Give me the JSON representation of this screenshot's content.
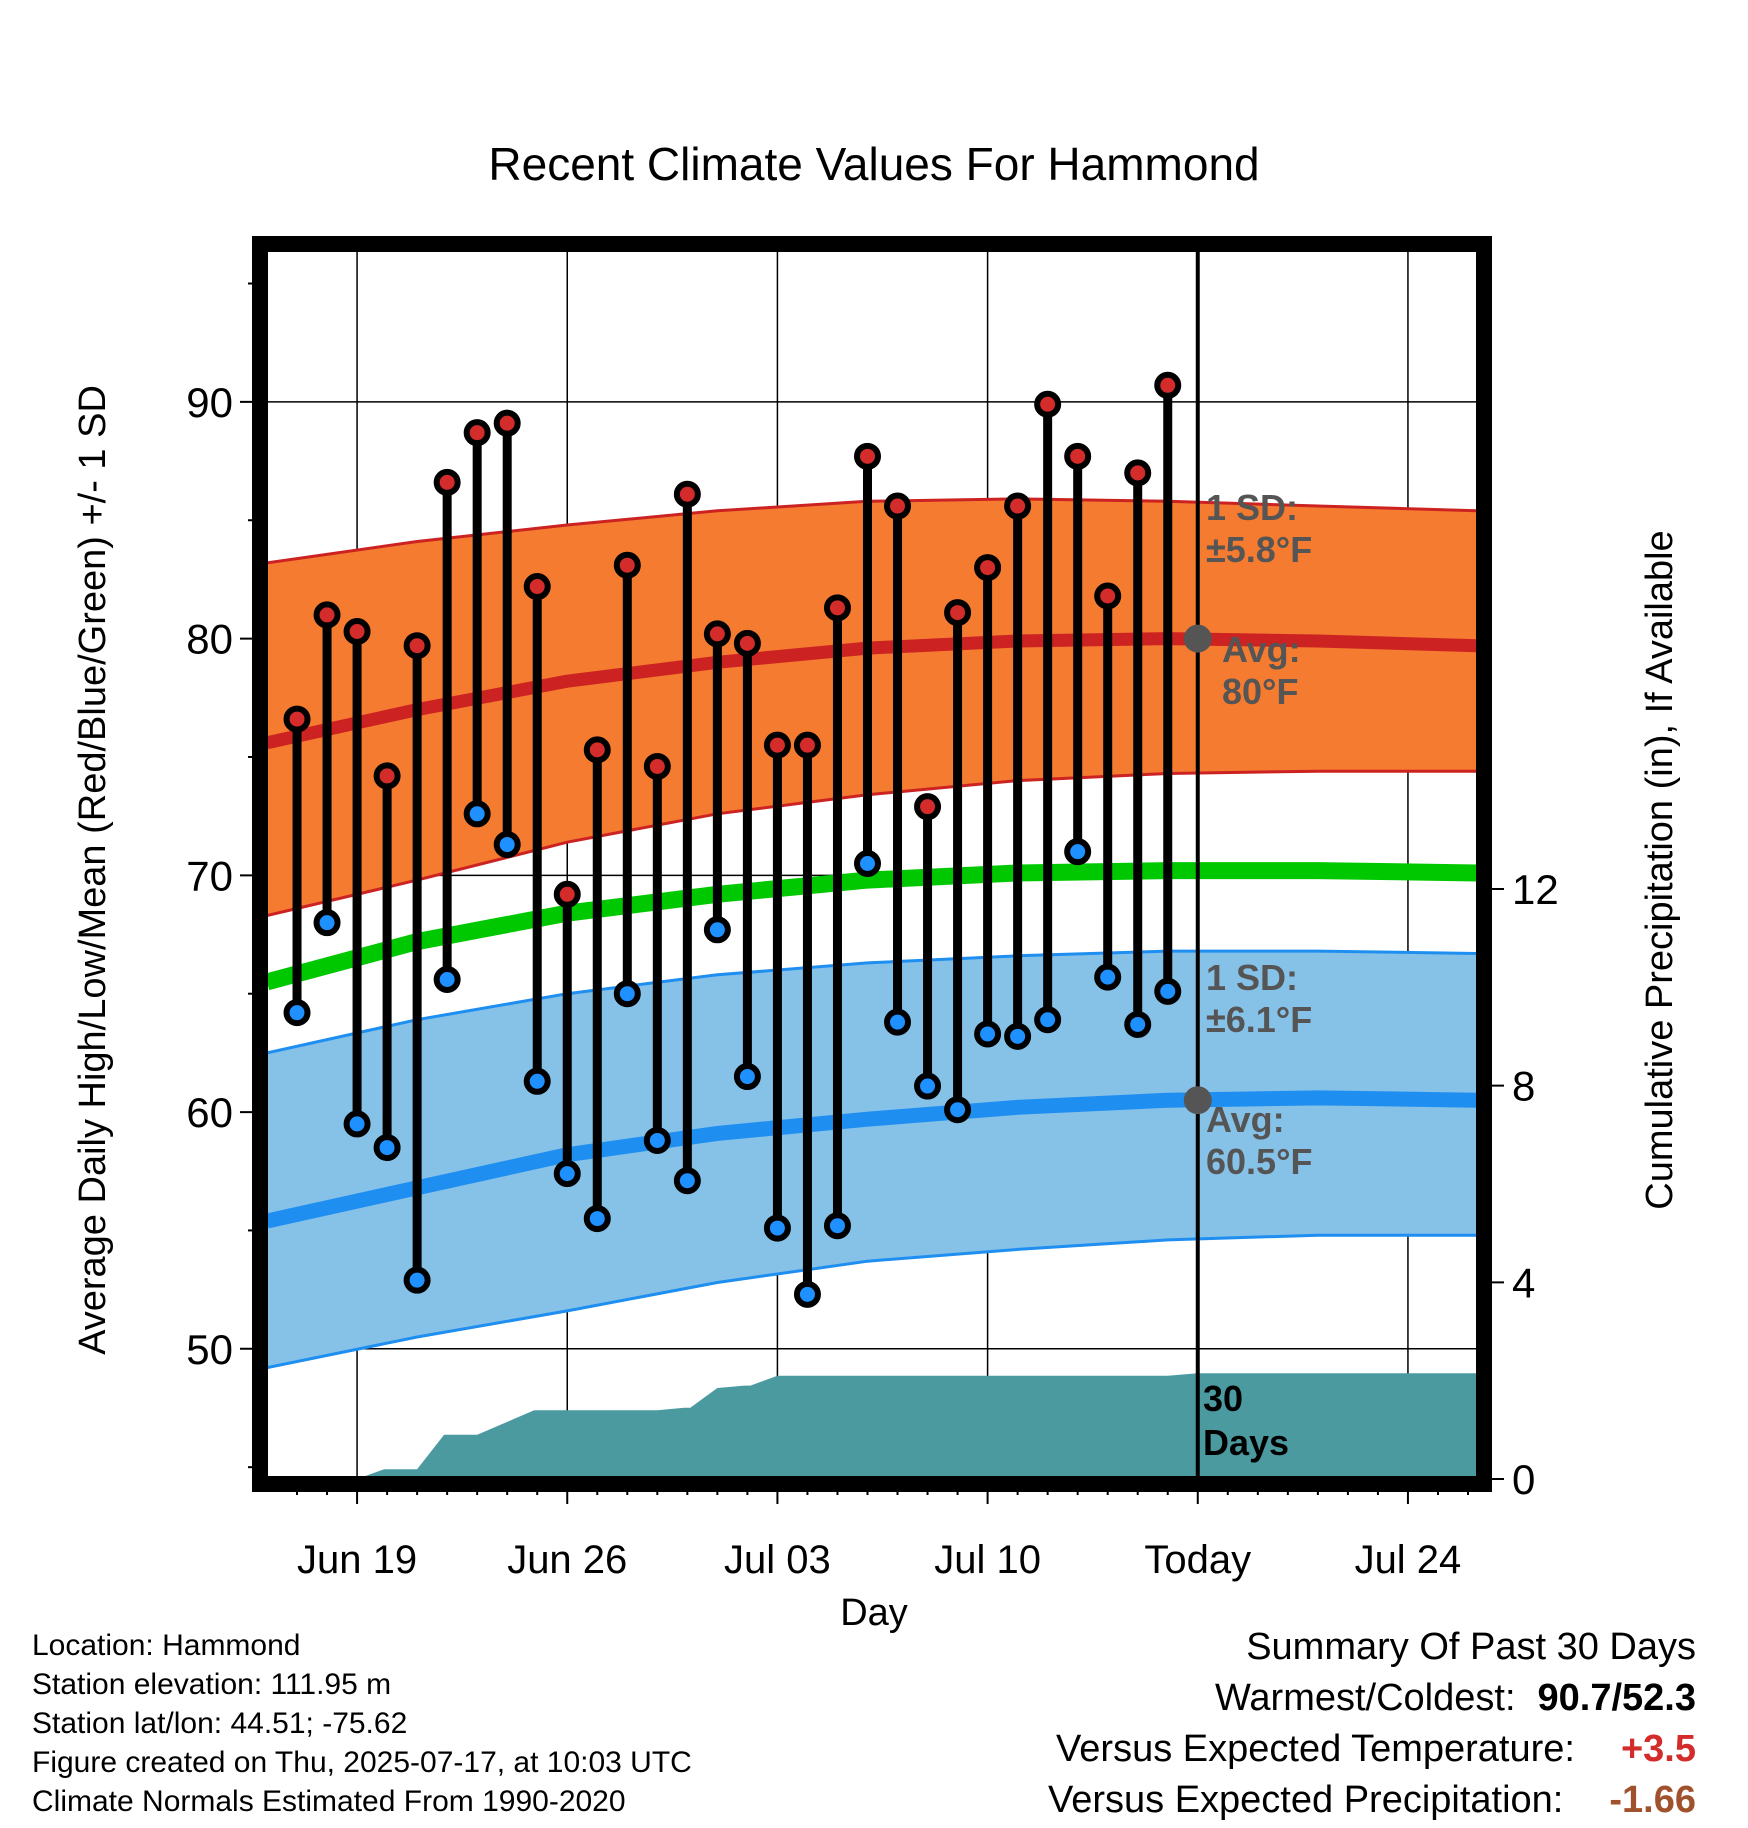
{
  "chart_data": {
    "type": "line",
    "title": "Recent Climate Values For Hammond",
    "xlabel": "Day",
    "ylabel_left": "Average Daily High/Low/Mean (Red/Blue/Green) +/- 1 SD",
    "ylabel_right": "Cumulative Precipitation (in), If Available",
    "x_tick_labels": [
      {
        "day": 3,
        "label": "Jun 19"
      },
      {
        "day": 10,
        "label": "Jun 26"
      },
      {
        "day": 17,
        "label": "Jul 03"
      },
      {
        "day": 24,
        "label": "Jul 10"
      },
      {
        "day": 31,
        "label": "Today"
      },
      {
        "day": 38,
        "label": "Jul 24"
      }
    ],
    "xlim": [
      0,
      40.3
    ],
    "ylim_left": [
      44.5,
      96.5
    ],
    "yticks_left": [
      50,
      60,
      70,
      80,
      90
    ],
    "yticks_right": [
      0,
      4,
      8,
      12
    ],
    "today_day": 31,
    "normals": {
      "day": [
        0,
        5,
        10,
        15,
        20,
        25,
        30,
        35,
        40.3
      ],
      "high_avg": [
        75.6,
        77.0,
        78.2,
        79.0,
        79.6,
        79.9,
        80.0,
        79.9,
        79.7
      ],
      "high_upper": [
        83.2,
        84.1,
        84.8,
        85.4,
        85.8,
        85.9,
        85.8,
        85.6,
        85.4
      ],
      "high_lower": [
        68.3,
        69.8,
        71.4,
        72.6,
        73.4,
        74.0,
        74.3,
        74.4,
        74.4
      ],
      "mean_avg": [
        65.5,
        67.2,
        68.4,
        69.2,
        69.8,
        70.1,
        70.2,
        70.2,
        70.1
      ],
      "low_avg": [
        55.4,
        56.8,
        58.2,
        59.1,
        59.7,
        60.2,
        60.5,
        60.6,
        60.5
      ],
      "low_upper": [
        62.5,
        63.9,
        65.0,
        65.8,
        66.3,
        66.6,
        66.8,
        66.8,
        66.7
      ],
      "low_lower": [
        49.2,
        50.5,
        51.6,
        52.8,
        53.7,
        54.2,
        54.6,
        54.8,
        54.8
      ]
    },
    "series": [
      {
        "name": "High",
        "color": "#d42b2b",
        "day": [
          1,
          2,
          3,
          4,
          5,
          6,
          7,
          8,
          9,
          10,
          11,
          12,
          13,
          14,
          15,
          16,
          17,
          18,
          19,
          20,
          21,
          22,
          23,
          24,
          25,
          26,
          27,
          28,
          29,
          30
        ],
        "values": [
          76.6,
          81.0,
          80.3,
          74.2,
          79.7,
          86.6,
          88.7,
          89.1,
          82.2,
          69.2,
          75.3,
          83.1,
          74.6,
          86.1,
          80.2,
          79.8,
          75.5,
          75.5,
          81.3,
          87.7,
          85.6,
          72.9,
          81.1,
          83.0,
          85.6,
          89.9,
          87.7,
          81.8,
          87.0,
          90.7
        ]
      },
      {
        "name": "Low",
        "color": "#1e90ff",
        "day": [
          1,
          2,
          3,
          4,
          5,
          6,
          7,
          8,
          9,
          10,
          11,
          12,
          13,
          14,
          15,
          16,
          17,
          18,
          19,
          20,
          21,
          22,
          23,
          24,
          25,
          26,
          27,
          28,
          29,
          30
        ],
        "values": [
          64.2,
          68.0,
          59.5,
          58.5,
          52.9,
          65.6,
          72.6,
          71.3,
          61.3,
          57.4,
          55.5,
          65.0,
          58.8,
          57.1,
          67.7,
          61.5,
          55.1,
          52.3,
          55.2,
          70.5,
          63.8,
          61.1,
          60.1,
          63.3,
          63.2,
          63.9,
          71.0,
          65.7,
          63.7,
          65.1
        ]
      }
    ],
    "precip": {
      "day": [
        0,
        3,
        3.9,
        4.1,
        5,
        5.9,
        6.1,
        7,
        8.9,
        9.1,
        12,
        13,
        13.9,
        14.1,
        15,
        15.9,
        16.1,
        17,
        30,
        31,
        40.3
      ],
      "cumulative": [
        0,
        0,
        0.2,
        0.2,
        0.2,
        0.9,
        0.9,
        0.9,
        1.4,
        1.4,
        1.4,
        1.4,
        1.45,
        1.45,
        1.85,
        1.9,
        1.9,
        2.1,
        2.1,
        2.15,
        2.15
      ],
      "label": "30\nDays"
    },
    "annotations": {
      "high_sd": "1 SD:\n±5.8°F",
      "high_avg": "Avg:\n80°F",
      "low_sd": "1 SD:\n±6.1°F",
      "low_avg": "Avg:\n60.5°F"
    },
    "colors": {
      "high_band": "#f47b30",
      "high_line": "#cc2222",
      "mean_line": "#00c800",
      "low_band": "#86c1e8",
      "low_line": "#1e8ff0",
      "precip": "#4a9aa0",
      "text_gray": "#555555"
    },
    "legend": "none",
    "grid": true
  },
  "info": {
    "location": "Location: Hammond",
    "elevation": "Station elevation: 111.95 m",
    "latlon": "Station lat/lon: 44.51; -75.62",
    "created": "Figure created on Thu, 2025-07-17, at 10:03 UTC",
    "normals": "Climate Normals Estimated From 1990-2020"
  },
  "summary": {
    "title": "Summary Of Past 30 Days",
    "warm_cold_label": "Warmest/Coldest:",
    "warm_cold_value": "90.7/52.3",
    "temp_label": "Versus Expected Temperature:",
    "temp_value": "+3.5",
    "temp_color": "#d42b2b",
    "precip_label": "Versus Expected Precipitation:",
    "precip_value": "-1.66",
    "precip_color": "#a0522d"
  }
}
